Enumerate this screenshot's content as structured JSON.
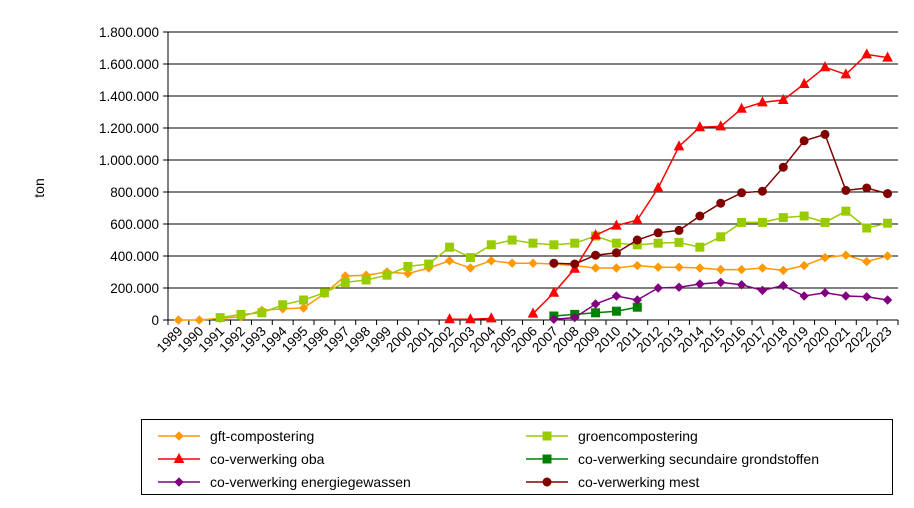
{
  "chart_data": {
    "type": "line",
    "title": "",
    "xlabel": "",
    "ylabel": "ton",
    "ylim": [
      0,
      1800000
    ],
    "y_ticks": [
      0,
      200000,
      400000,
      600000,
      800000,
      1000000,
      1200000,
      1400000,
      1600000,
      1800000
    ],
    "y_tick_labels": [
      "0",
      "200.000",
      "400.000",
      "600.000",
      "800.000",
      "1.000.000",
      "1.200.000",
      "1.400.000",
      "1.600.000",
      "1.800.000"
    ],
    "categories": [
      "1989",
      "1990",
      "1991",
      "1992",
      "1993",
      "1994",
      "1995",
      "1996",
      "1997",
      "1998",
      "1999",
      "2000",
      "2001",
      "2002",
      "2003",
      "2004",
      "2005",
      "2006",
      "2007",
      "2008",
      "2009",
      "2010",
      "2011",
      "2012",
      "2013",
      "2014",
      "2015",
      "2016",
      "2017",
      "2018",
      "2019",
      "2020",
      "2021",
      "2022",
      "2023"
    ],
    "grid": "horizontal",
    "legend_position": "bottom",
    "series": [
      {
        "name": "gft-compostering",
        "color": "#ff9900",
        "marker": "diamond",
        "values": [
          0,
          0,
          10000,
          20000,
          60000,
          70000,
          75000,
          165000,
          275000,
          280000,
          300000,
          290000,
          325000,
          370000,
          325000,
          370000,
          355000,
          355000,
          350000,
          340000,
          325000,
          325000,
          340000,
          330000,
          330000,
          325000,
          315000,
          315000,
          325000,
          310000,
          340000,
          390000,
          405000,
          365000,
          400000
        ]
      },
      {
        "name": "groencompostering",
        "color": "#99cc00",
        "marker": "square",
        "values": [
          null,
          null,
          15000,
          35000,
          45000,
          95000,
          125000,
          170000,
          235000,
          250000,
          280000,
          335000,
          350000,
          455000,
          390000,
          470000,
          500000,
          480000,
          470000,
          480000,
          525000,
          480000,
          470000,
          480000,
          485000,
          455000,
          520000,
          610000,
          610000,
          640000,
          650000,
          610000,
          680000,
          575000,
          605000
        ]
      },
      {
        "name": "co-verwerking oba",
        "color": "#ff0000",
        "marker": "triangle",
        "values": [
          null,
          null,
          null,
          null,
          null,
          null,
          null,
          null,
          null,
          null,
          null,
          null,
          null,
          5000,
          5000,
          10000,
          null,
          40000,
          170000,
          320000,
          530000,
          590000,
          625000,
          825000,
          1085000,
          1205000,
          1210000,
          1320000,
          1360000,
          1375000,
          1475000,
          1580000,
          1535000,
          1660000,
          1640000
        ]
      },
      {
        "name": "co-verwerking secundaire grondstoffen",
        "color": "#008000",
        "marker": "square",
        "values": [
          null,
          null,
          null,
          null,
          null,
          null,
          null,
          null,
          null,
          null,
          null,
          null,
          null,
          null,
          null,
          null,
          null,
          null,
          25000,
          35000,
          45000,
          55000,
          80000,
          null,
          null,
          null,
          null,
          null,
          null,
          null,
          null,
          null,
          null,
          null,
          null
        ]
      },
      {
        "name": "co-verwerking energiegewassen",
        "color": "#800080",
        "marker": "diamond",
        "values": [
          null,
          null,
          null,
          null,
          null,
          null,
          null,
          null,
          null,
          null,
          null,
          null,
          null,
          null,
          null,
          null,
          null,
          null,
          5000,
          15000,
          100000,
          150000,
          125000,
          200000,
          205000,
          225000,
          235000,
          220000,
          185000,
          215000,
          150000,
          170000,
          150000,
          145000,
          125000
        ]
      },
      {
        "name": "co-verwerking mest",
        "color": "#800000",
        "marker": "circle",
        "values": [
          null,
          null,
          null,
          null,
          null,
          null,
          null,
          null,
          null,
          null,
          null,
          null,
          null,
          null,
          null,
          null,
          null,
          null,
          355000,
          350000,
          405000,
          420000,
          500000,
          545000,
          560000,
          650000,
          730000,
          795000,
          805000,
          955000,
          1120000,
          1160000,
          810000,
          825000,
          790000
        ]
      }
    ]
  }
}
